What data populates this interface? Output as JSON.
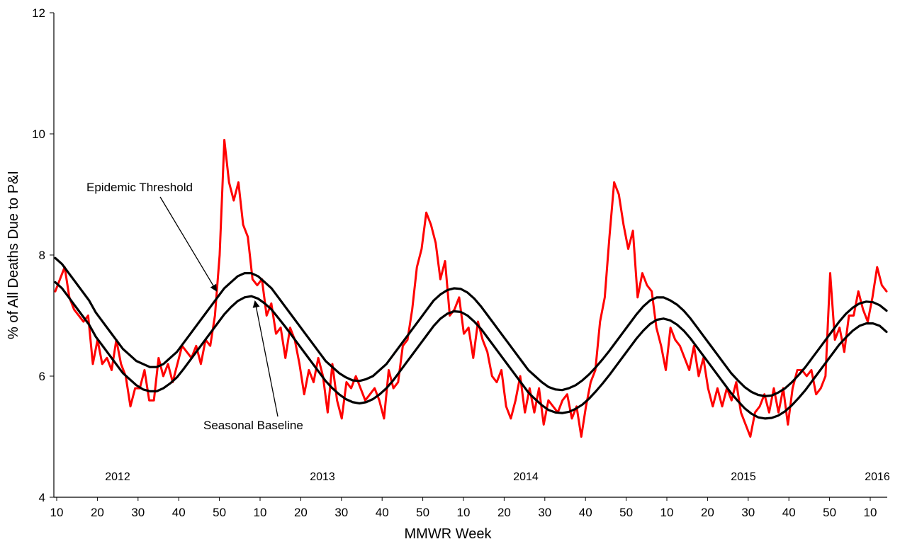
{
  "chart_data": {
    "type": "line",
    "title": "",
    "xlabel": "MMWR Week",
    "ylabel": "% of All Deaths Due to P&I",
    "ylim": [
      4,
      12
    ],
    "yticks": [
      4,
      6,
      8,
      10,
      12
    ],
    "x_tick_labels": [
      "10",
      "20",
      "30",
      "40",
      "50",
      "10",
      "20",
      "30",
      "40",
      "50",
      "10",
      "20",
      "30",
      "40",
      "50",
      "10",
      "20",
      "30",
      "40",
      "50",
      "10"
    ],
    "year_labels": [
      "2012",
      "2013",
      "2014",
      "2015",
      "2016"
    ],
    "grid": false,
    "annotations": [
      {
        "text": "Epidemic Threshold",
        "points_to": "Epidemic Threshold"
      },
      {
        "text": "Seasonal Baseline",
        "points_to": "Seasonal Baseline"
      }
    ],
    "series": [
      {
        "name": "Epidemic Threshold",
        "color": "#000000",
        "values": [
          7.95,
          7.85,
          7.7,
          7.55,
          7.4,
          7.25,
          7.05,
          6.9,
          6.75,
          6.6,
          6.45,
          6.35,
          6.25,
          6.2,
          6.15,
          6.15,
          6.2,
          6.3,
          6.4,
          6.55,
          6.7,
          6.85,
          7.0,
          7.15,
          7.3,
          7.45,
          7.55,
          7.65,
          7.7,
          7.7,
          7.65,
          7.55,
          7.45,
          7.3,
          7.15,
          7.0,
          6.85,
          6.7,
          6.55,
          6.4,
          6.25,
          6.15,
          6.05,
          5.98,
          5.93,
          5.92,
          5.95,
          6.0,
          6.1,
          6.2,
          6.35,
          6.5,
          6.65,
          6.8,
          6.95,
          7.1,
          7.25,
          7.35,
          7.42,
          7.45,
          7.44,
          7.38,
          7.28,
          7.15,
          7.0,
          6.85,
          6.7,
          6.55,
          6.4,
          6.25,
          6.1,
          6.0,
          5.9,
          5.82,
          5.78,
          5.77,
          5.8,
          5.85,
          5.93,
          6.03,
          6.15,
          6.28,
          6.42,
          6.57,
          6.72,
          6.87,
          7.02,
          7.15,
          7.25,
          7.3,
          7.3,
          7.25,
          7.18,
          7.08,
          6.95,
          6.8,
          6.65,
          6.5,
          6.35,
          6.2,
          6.05,
          5.93,
          5.82,
          5.74,
          5.69,
          5.67,
          5.68,
          5.73,
          5.8,
          5.9,
          6.02,
          6.15,
          6.3,
          6.45,
          6.6,
          6.75,
          6.9,
          7.03,
          7.13,
          7.2,
          7.23,
          7.22,
          7.17,
          7.08
        ]
      },
      {
        "name": "Seasonal Baseline",
        "color": "#000000",
        "values": [
          7.55,
          7.45,
          7.3,
          7.15,
          7.0,
          6.85,
          6.65,
          6.5,
          6.35,
          6.2,
          6.05,
          5.95,
          5.85,
          5.78,
          5.75,
          5.75,
          5.8,
          5.88,
          5.98,
          6.12,
          6.27,
          6.42,
          6.57,
          6.72,
          6.87,
          7.02,
          7.14,
          7.24,
          7.3,
          7.32,
          7.28,
          7.2,
          7.1,
          6.96,
          6.82,
          6.67,
          6.52,
          6.37,
          6.22,
          6.07,
          5.92,
          5.8,
          5.7,
          5.62,
          5.57,
          5.55,
          5.57,
          5.62,
          5.7,
          5.8,
          5.93,
          6.08,
          6.23,
          6.38,
          6.53,
          6.68,
          6.83,
          6.95,
          7.03,
          7.07,
          7.06,
          7.0,
          6.9,
          6.78,
          6.63,
          6.48,
          6.33,
          6.18,
          6.03,
          5.88,
          5.73,
          5.62,
          5.52,
          5.44,
          5.4,
          5.39,
          5.41,
          5.46,
          5.53,
          5.63,
          5.75,
          5.88,
          6.02,
          6.17,
          6.32,
          6.47,
          6.62,
          6.75,
          6.86,
          6.93,
          6.95,
          6.92,
          6.85,
          6.75,
          6.62,
          6.47,
          6.32,
          6.17,
          6.02,
          5.87,
          5.72,
          5.59,
          5.47,
          5.38,
          5.32,
          5.3,
          5.31,
          5.35,
          5.42,
          5.52,
          5.64,
          5.77,
          5.92,
          6.07,
          6.22,
          6.37,
          6.52,
          6.64,
          6.75,
          6.83,
          6.87,
          6.87,
          6.83,
          6.73
        ]
      },
      {
        "name": "% P&I",
        "color": "#ff0000",
        "values": [
          7.4,
          7.6,
          7.8,
          7.3,
          7.1,
          7.0,
          6.9,
          7.0,
          6.2,
          6.6,
          6.2,
          6.3,
          6.1,
          6.6,
          6.2,
          6.0,
          5.5,
          5.8,
          5.8,
          6.1,
          5.6,
          5.6,
          6.3,
          6.0,
          6.2,
          5.9,
          6.2,
          6.5,
          6.4,
          6.3,
          6.5,
          6.2,
          6.6,
          6.5,
          7.0,
          8.0,
          9.9,
          9.2,
          8.9,
          9.2,
          8.5,
          8.3,
          7.6,
          7.5,
          7.6,
          7.0,
          7.2,
          6.7,
          6.8,
          6.3,
          6.8,
          6.6,
          6.2,
          5.7,
          6.1,
          5.9,
          6.3,
          6.0,
          5.4,
          6.2,
          5.6,
          5.3,
          5.9,
          5.8,
          6.0,
          5.8,
          5.6,
          5.7,
          5.8,
          5.6,
          5.3,
          6.1,
          5.8,
          5.9,
          6.5,
          6.6,
          7.1,
          7.8,
          8.1,
          8.7,
          8.5,
          8.2,
          7.6,
          7.9,
          7.0,
          7.1,
          7.3,
          6.7,
          6.8,
          6.3,
          6.9,
          6.6,
          6.4,
          6.0,
          5.9,
          6.1,
          5.5,
          5.3,
          5.6,
          6.0,
          5.4,
          5.8,
          5.4,
          5.8,
          5.2,
          5.6,
          5.5,
          5.4,
          5.6,
          5.7,
          5.3,
          5.5,
          5.0,
          5.5,
          5.9,
          6.1,
          6.9,
          7.3,
          8.3,
          9.2,
          9.0,
          8.5,
          8.1,
          8.4,
          7.3,
          7.7,
          7.5,
          7.4,
          6.8,
          6.5,
          6.1,
          6.8,
          6.6,
          6.5,
          6.3,
          6.1,
          6.5,
          6.0,
          6.3,
          5.8,
          5.5,
          5.8,
          5.5,
          5.8,
          5.6,
          5.9,
          5.4,
          5.2,
          5.0,
          5.4,
          5.5,
          5.7,
          5.4,
          5.8,
          5.4,
          5.8,
          5.2,
          5.8,
          6.1,
          6.1,
          6.0,
          6.1,
          5.7,
          5.8,
          6.0,
          7.7,
          6.6,
          6.8,
          6.4,
          7.0,
          7.0,
          7.4,
          7.1,
          6.9,
          7.3,
          7.8,
          7.5,
          7.4
        ]
      }
    ]
  }
}
